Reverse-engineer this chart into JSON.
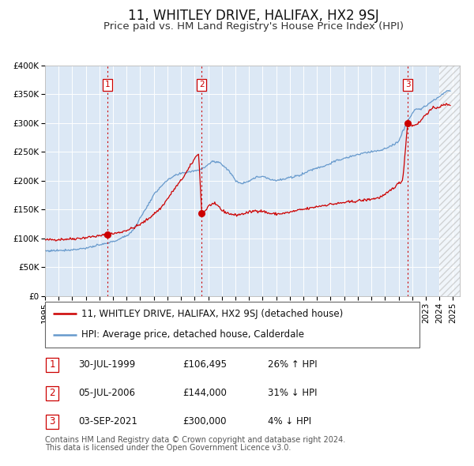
{
  "title": "11, WHITLEY DRIVE, HALIFAX, HX2 9SJ",
  "subtitle": "Price paid vs. HM Land Registry's House Price Index (HPI)",
  "ylim": [
    0,
    400000
  ],
  "xlim_start": 1995.0,
  "xlim_end": 2025.5,
  "background_color": "#ffffff",
  "plot_bg_color": "#dce8f5",
  "grid_color": "#ffffff",
  "red_line_color": "#cc0000",
  "blue_line_color": "#6699cc",
  "sale_marker_color": "#cc0000",
  "vline_color": "#cc0000",
  "transaction_box_color": "#cc0000",
  "title_fontsize": 12,
  "subtitle_fontsize": 9.5,
  "tick_fontsize": 7.5,
  "legend_fontsize": 8.5,
  "table_fontsize": 8.5,
  "footnote_fontsize": 7,
  "hatch_color": "#cccccc",
  "transactions": [
    {
      "num": 1,
      "date": "30-JUL-1999",
      "price": 106495,
      "price_str": "£106,495",
      "pct": "26%",
      "dir": "↑",
      "year": 1999.58
    },
    {
      "num": 2,
      "date": "05-JUL-2006",
      "price": 144000,
      "price_str": "£144,000",
      "pct": "31%",
      "dir": "↓",
      "year": 2006.51
    },
    {
      "num": 3,
      "date": "03-SEP-2021",
      "price": 300000,
      "price_str": "£300,000",
      "pct": "4%",
      "dir": "↓",
      "year": 2021.67
    }
  ],
  "legend_items": [
    {
      "label": "11, WHITLEY DRIVE, HALIFAX, HX2 9SJ (detached house)",
      "color": "#cc0000"
    },
    {
      "label": "HPI: Average price, detached house, Calderdale",
      "color": "#6699cc"
    }
  ],
  "footnote_line1": "Contains HM Land Registry data © Crown copyright and database right 2024.",
  "footnote_line2": "This data is licensed under the Open Government Licence v3.0.",
  "ytick_labels": [
    "£0",
    "£50K",
    "£100K",
    "£150K",
    "£200K",
    "£250K",
    "£300K",
    "£350K",
    "£400K"
  ],
  "ytick_values": [
    0,
    50000,
    100000,
    150000,
    200000,
    250000,
    300000,
    350000,
    400000
  ],
  "xtick_years": [
    1995,
    1996,
    1997,
    1998,
    1999,
    2000,
    2001,
    2002,
    2003,
    2004,
    2005,
    2006,
    2007,
    2008,
    2009,
    2010,
    2011,
    2012,
    2013,
    2014,
    2015,
    2016,
    2017,
    2018,
    2019,
    2020,
    2021,
    2022,
    2023,
    2024,
    2025
  ]
}
